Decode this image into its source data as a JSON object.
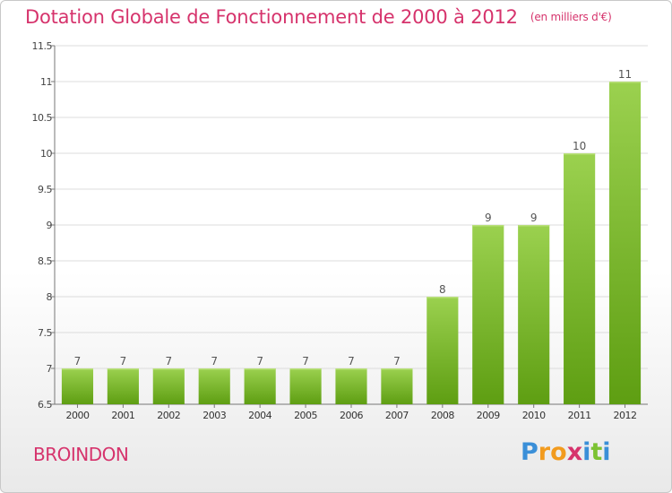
{
  "header": {
    "title": "Dotation Globale de Fonctionnement de 2000 à 2012",
    "unit": "(en milliers d'€)"
  },
  "footer": {
    "commune": "BROINDON",
    "logo_text": "Proxiti"
  },
  "colors": {
    "title": "#d6336c",
    "bar_top": "#9bd14f",
    "bar_bottom": "#5e9e12",
    "grid": "#d9d9d9"
  },
  "chart_data": {
    "type": "bar",
    "title": "Dotation Globale de Fonctionnement de 2000 à 2012",
    "xlabel": "",
    "ylabel": "",
    "categories": [
      "2000",
      "2001",
      "2002",
      "2003",
      "2004",
      "2005",
      "2006",
      "2007",
      "2008",
      "2009",
      "2010",
      "2011",
      "2012"
    ],
    "values": [
      7,
      7,
      7,
      7,
      7,
      7,
      7,
      7,
      8,
      9,
      9,
      10,
      11
    ],
    "data_labels": [
      "7",
      "7",
      "7",
      "7",
      "7",
      "7",
      "7",
      "7",
      "8",
      "9",
      "9",
      "10",
      "11"
    ],
    "ylim": [
      6.5,
      11.5
    ],
    "yticks": [
      6.5,
      7,
      7.5,
      8,
      8.5,
      9,
      9.5,
      10,
      10.5,
      11,
      11.5
    ],
    "ytick_labels": [
      "6.5",
      "7",
      "7.5",
      "8",
      "8.5",
      "9",
      "9.5",
      "10",
      "10.5",
      "11",
      "11.5"
    ],
    "grid": "horizontal"
  }
}
